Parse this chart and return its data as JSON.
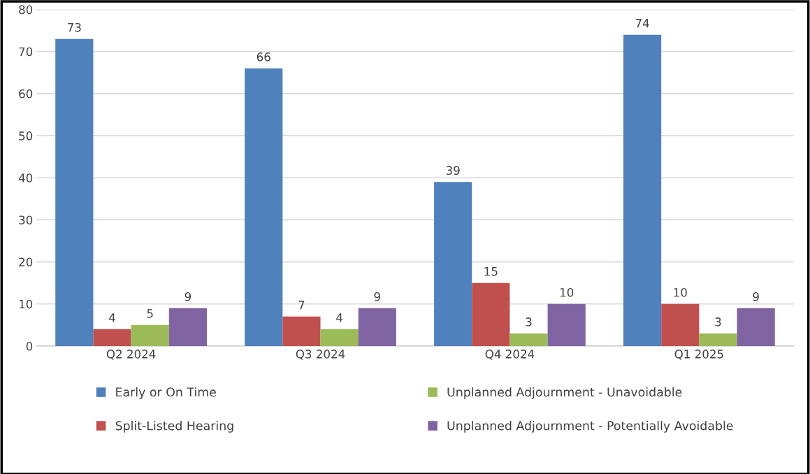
{
  "chart_data": {
    "type": "bar",
    "categories": [
      "Q2 2024",
      "Q3 2024",
      "Q4 2024",
      "Q1 2025"
    ],
    "series": [
      {
        "name": "Early or On Time",
        "color": "#4f81bd",
        "values": [
          73,
          66,
          39,
          74
        ]
      },
      {
        "name": "Split-Listed Hearing",
        "color": "#c0504d",
        "values": [
          4,
          7,
          15,
          10
        ]
      },
      {
        "name": "Unplanned Adjournment - Unavoidable",
        "color": "#9bbb59",
        "values": [
          5,
          4,
          3,
          3
        ]
      },
      {
        "name": "Unplanned Adjournment - Potentially Avoidable",
        "color": "#8064a2",
        "values": [
          9,
          9,
          10,
          9
        ]
      }
    ],
    "ylim": [
      0,
      80
    ],
    "yticks": [
      0,
      10,
      20,
      30,
      40,
      50,
      60,
      70,
      80
    ],
    "grid": "y",
    "legend": "bottom",
    "data_labels": true
  }
}
